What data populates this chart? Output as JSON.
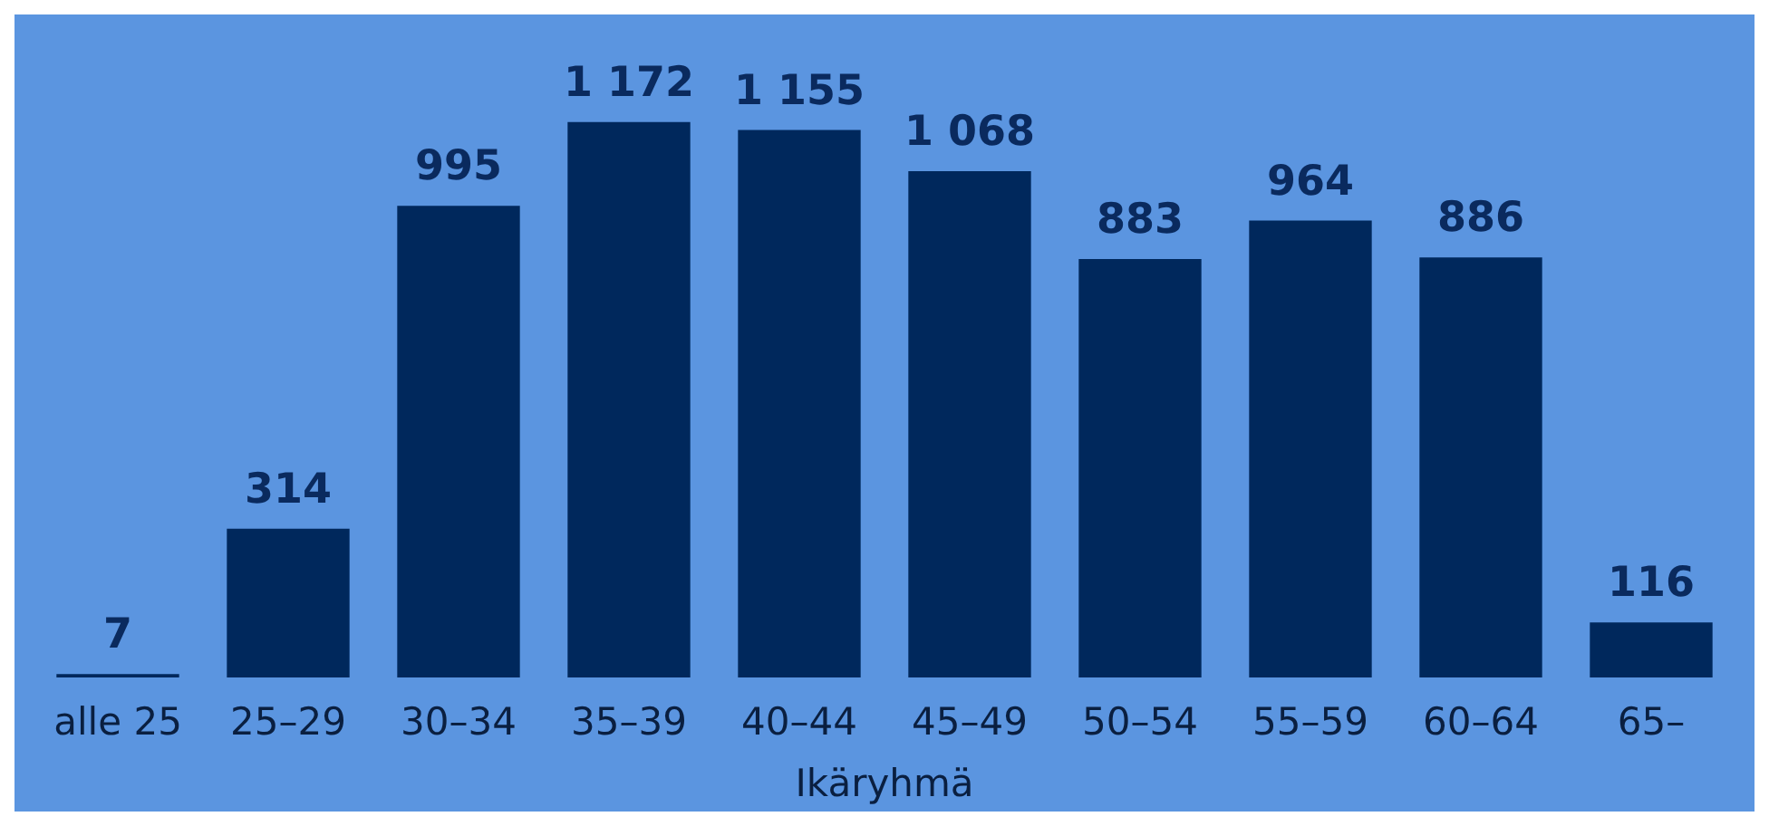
{
  "chart_data": {
    "type": "bar",
    "xlabel": "Ikäryhmä",
    "categories": [
      "alle 25",
      "25–29",
      "30–34",
      "35–39",
      "40–44",
      "45–49",
      "50–54",
      "55–59",
      "60–64",
      "65–"
    ],
    "values": [
      7,
      314,
      995,
      1172,
      1155,
      1068,
      883,
      964,
      886,
      116
    ],
    "value_labels": [
      "7",
      "314",
      "995",
      "1 172",
      "1 155",
      "1 068",
      "883",
      "964",
      "886",
      "116"
    ],
    "color": "#00285c"
  }
}
